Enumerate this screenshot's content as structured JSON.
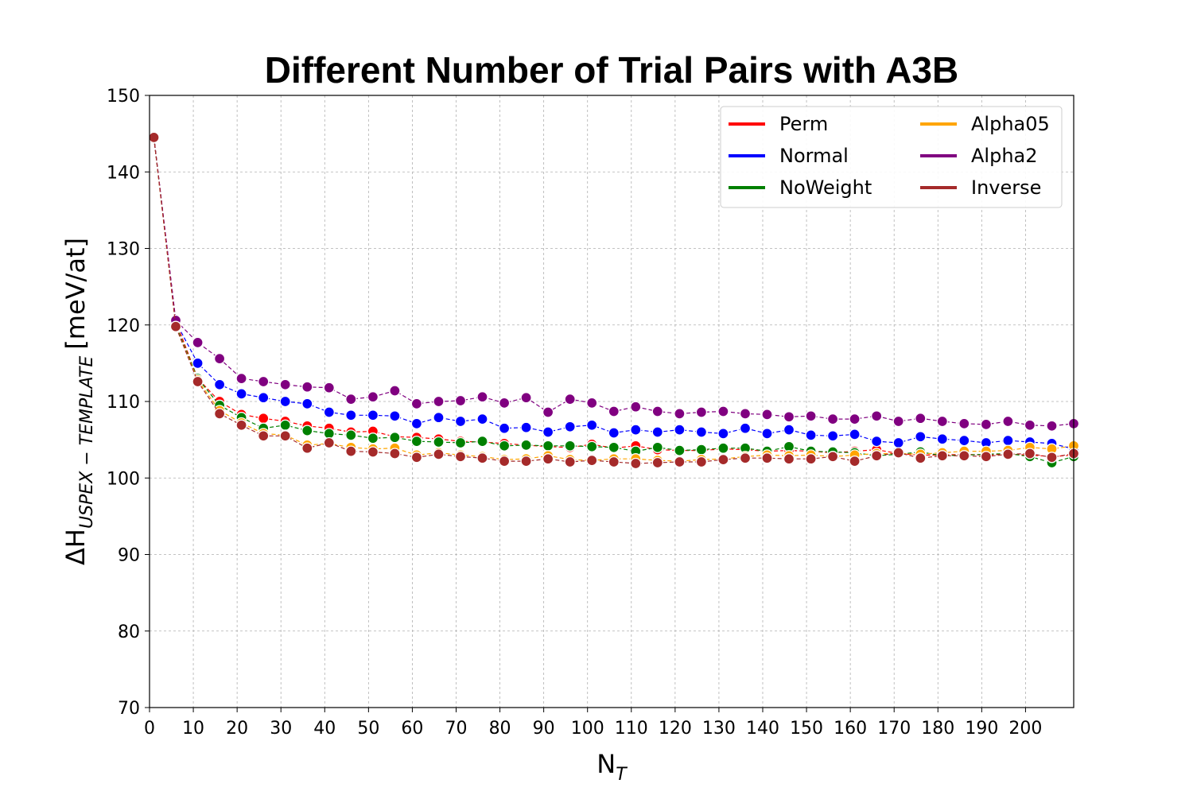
{
  "chart_data": {
    "type": "line",
    "title": "Different Number of Trial Pairs with A3B",
    "xlabel": {
      "main": "N",
      "sub": "T"
    },
    "ylabel": {
      "prefix": "ΔH",
      "sub": "USPEX − TEMPLATE",
      "suffix": "[meV/at]"
    },
    "xlim": [
      0,
      211
    ],
    "ylim": [
      70,
      150
    ],
    "xticks": [
      0,
      10,
      20,
      30,
      40,
      50,
      60,
      70,
      80,
      90,
      100,
      110,
      120,
      130,
      140,
      150,
      160,
      170,
      180,
      190,
      200
    ],
    "yticks": [
      70,
      80,
      90,
      100,
      110,
      120,
      130,
      140,
      150
    ],
    "grid": true,
    "legend_position": "top-right",
    "x": [
      1,
      6,
      11,
      16,
      21,
      26,
      31,
      36,
      41,
      46,
      51,
      56,
      61,
      66,
      71,
      76,
      81,
      86,
      91,
      96,
      101,
      106,
      111,
      116,
      121,
      126,
      131,
      136,
      141,
      146,
      151,
      156,
      161,
      166,
      171,
      176,
      181,
      186,
      191,
      196,
      201,
      206,
      211
    ],
    "series": [
      {
        "name": "Perm",
        "color": "#ff0000",
        "values": [
          144.5,
          120.5,
          113.0,
          110.0,
          108.3,
          107.8,
          107.4,
          106.8,
          106.5,
          106.0,
          106.1,
          105.4,
          105.3,
          105.1,
          104.8,
          104.7,
          104.5,
          104.3,
          104.1,
          104.0,
          104.4,
          103.9,
          104.2,
          103.7,
          103.6,
          103.6,
          103.8,
          103.7,
          103.5,
          103.6,
          103.5,
          103.3,
          103.5,
          103.7,
          103.2,
          103.0,
          103.0,
          103.1,
          103.0,
          103.1,
          103.0,
          102.8,
          103.0
        ]
      },
      {
        "name": "Normal",
        "color": "#0000ff",
        "values": [
          144.5,
          120.4,
          115.0,
          112.2,
          111.0,
          110.5,
          110.0,
          109.7,
          108.6,
          108.2,
          108.2,
          108.1,
          107.1,
          107.9,
          107.4,
          107.7,
          106.5,
          106.6,
          106.0,
          106.7,
          106.9,
          105.9,
          106.3,
          106.0,
          106.3,
          106.0,
          105.8,
          106.5,
          105.8,
          106.3,
          105.6,
          105.5,
          105.7,
          104.8,
          104.6,
          105.4,
          105.1,
          104.9,
          104.6,
          104.9,
          104.7,
          104.5,
          103.8
        ]
      },
      {
        "name": "NoWeight",
        "color": "#008000",
        "values": [
          144.5,
          120.0,
          113.0,
          109.5,
          107.9,
          106.5,
          106.9,
          106.2,
          105.8,
          105.6,
          105.2,
          105.3,
          104.8,
          104.7,
          104.6,
          104.8,
          104.2,
          104.3,
          104.2,
          104.2,
          104.1,
          104.0,
          103.5,
          104.0,
          103.6,
          103.7,
          103.9,
          103.9,
          103.5,
          104.1,
          103.5,
          103.4,
          103.3,
          102.9,
          103.1,
          103.4,
          102.9,
          103.0,
          103.1,
          103.2,
          102.8,
          102.0,
          102.8
        ]
      },
      {
        "name": "Alpha05",
        "color": "#ffa500",
        "values": [
          144.5,
          119.8,
          112.8,
          108.8,
          107.2,
          105.8,
          105.6,
          104.3,
          104.5,
          104.0,
          103.8,
          103.9,
          103.0,
          103.3,
          103.0,
          102.8,
          102.4,
          102.5,
          102.9,
          102.4,
          102.3,
          102.5,
          102.5,
          102.3,
          102.2,
          102.4,
          102.5,
          102.8,
          103.0,
          102.9,
          103.0,
          102.8,
          103.0,
          103.2,
          103.2,
          103.1,
          103.3,
          103.5,
          103.5,
          103.6,
          104.0,
          103.8,
          104.2
        ]
      },
      {
        "name": "Alpha2",
        "color": "#800080",
        "values": [
          144.5,
          120.6,
          117.7,
          115.6,
          113.0,
          112.6,
          112.2,
          111.9,
          111.8,
          110.3,
          110.6,
          111.4,
          109.7,
          110.0,
          110.1,
          110.6,
          109.8,
          110.5,
          108.6,
          110.3,
          109.8,
          108.7,
          109.3,
          108.7,
          108.4,
          108.6,
          108.7,
          108.4,
          108.3,
          108.0,
          108.1,
          107.7,
          107.7,
          108.1,
          107.4,
          107.8,
          107.4,
          107.1,
          107.0,
          107.4,
          106.9,
          106.8,
          107.1
        ]
      },
      {
        "name": "Inverse",
        "color": "#a52a2a",
        "values": [
          144.5,
          119.8,
          112.6,
          108.4,
          106.9,
          105.5,
          105.5,
          103.9,
          104.6,
          103.5,
          103.4,
          103.2,
          102.7,
          103.1,
          102.8,
          102.6,
          102.2,
          102.2,
          102.5,
          102.1,
          102.3,
          102.1,
          101.9,
          102.0,
          102.1,
          102.1,
          102.4,
          102.6,
          102.6,
          102.5,
          102.5,
          102.8,
          102.2,
          102.9,
          103.3,
          102.6,
          102.9,
          102.9,
          102.8,
          103.1,
          103.2,
          102.7,
          103.2
        ]
      }
    ]
  }
}
